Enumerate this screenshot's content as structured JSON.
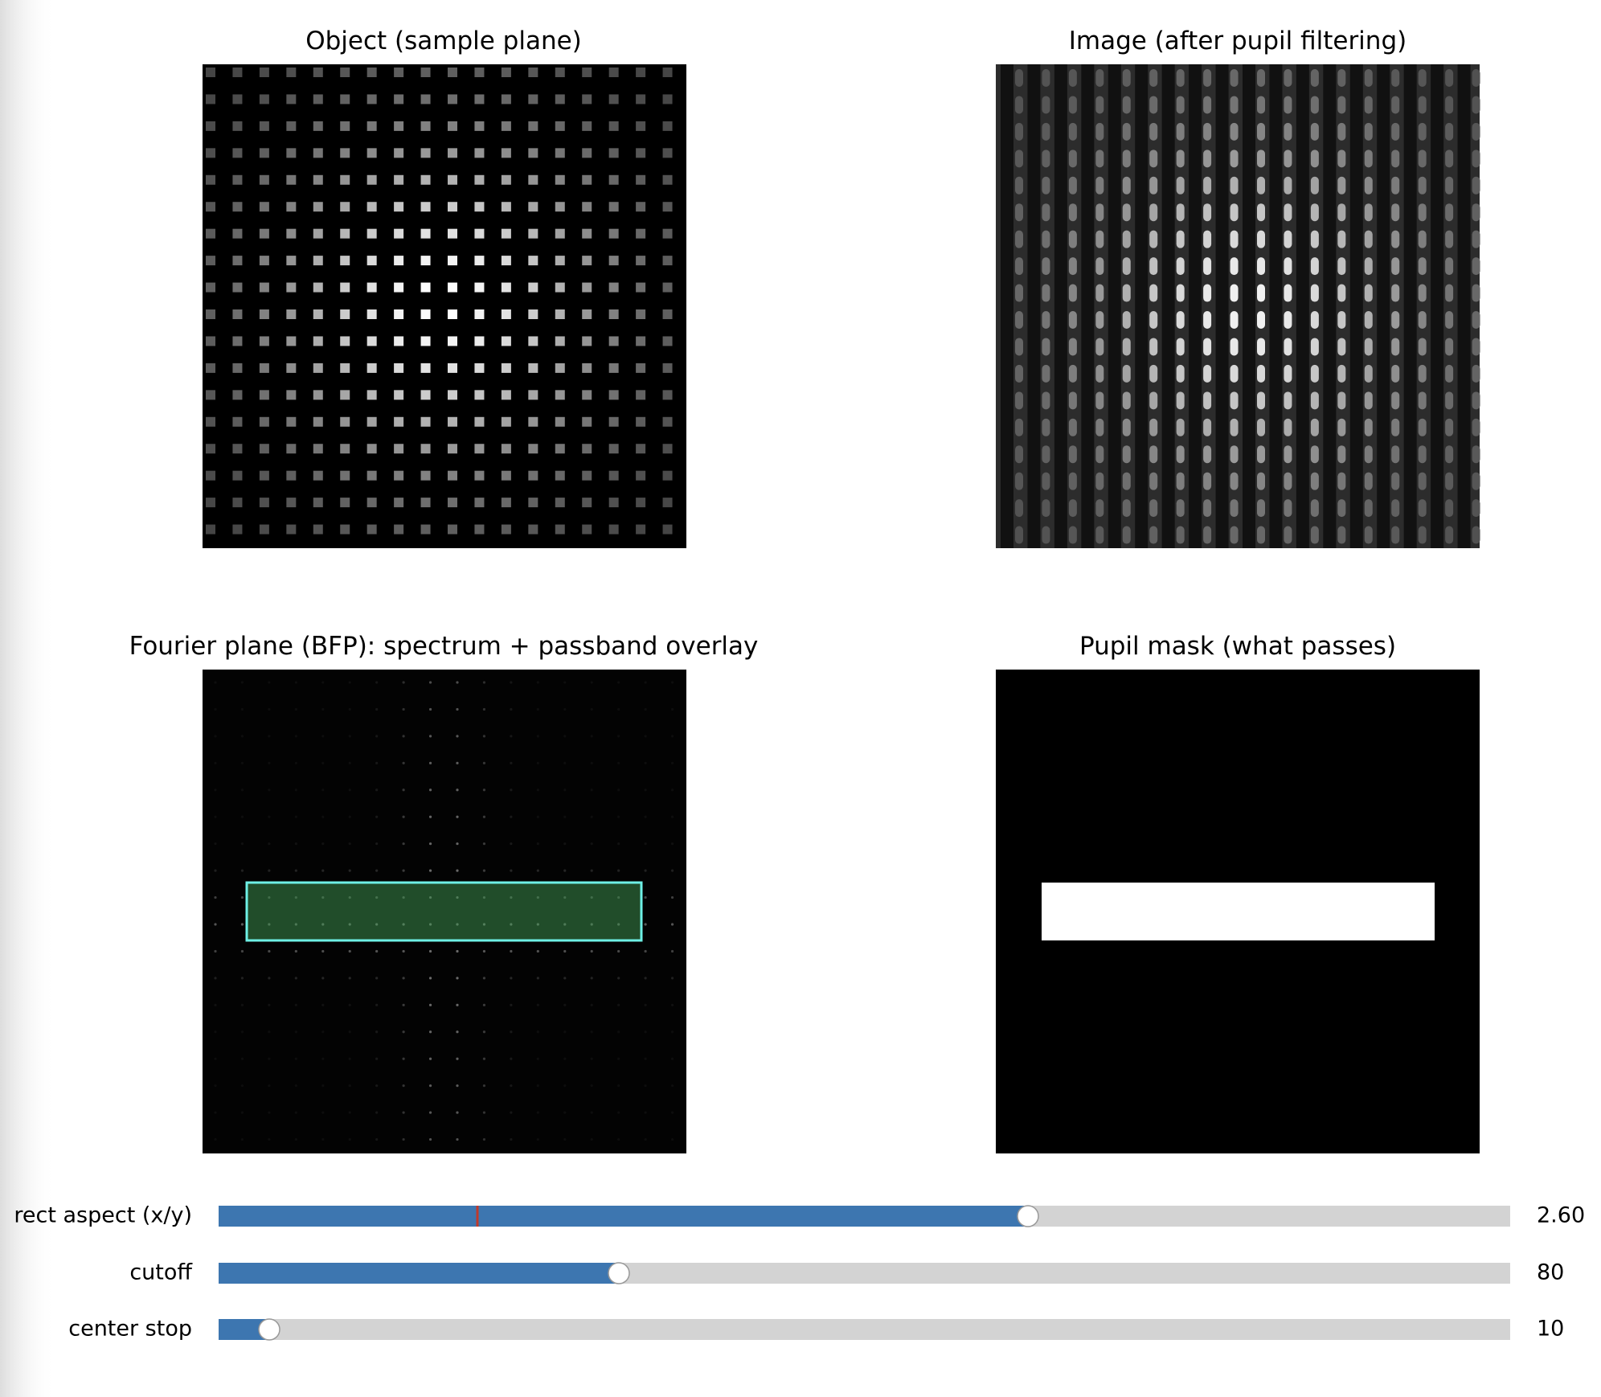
{
  "panels": [
    {
      "title": "Object (sample plane)"
    },
    {
      "title": "Image (after pupil filtering)"
    },
    {
      "title": "Fourier plane (BFP): spectrum + passband overlay"
    },
    {
      "title": "Pupil mask (what passes)"
    }
  ],
  "sliders": [
    {
      "label": "rect aspect (x/y)",
      "value": "2.60"
    },
    {
      "label": "cutoff",
      "value": "80"
    },
    {
      "label": "center stop",
      "value": "10"
    }
  ]
}
